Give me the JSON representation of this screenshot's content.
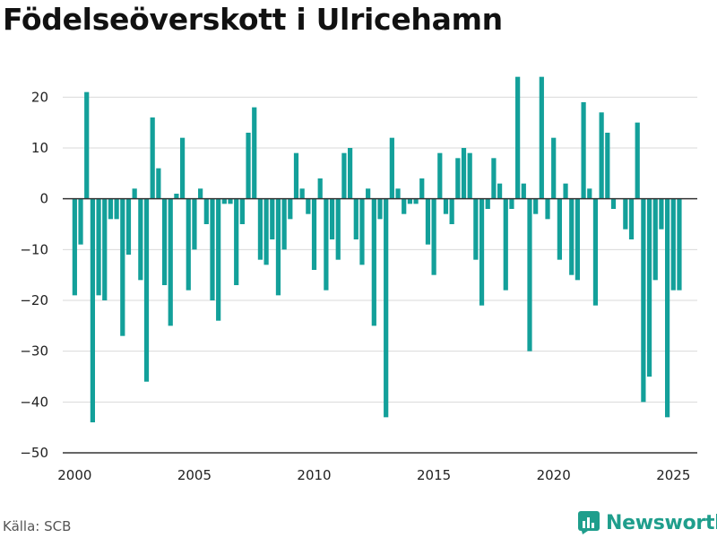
{
  "title": "Födelseöverskott i Ulricehamn",
  "source": "Källa: SCB",
  "brand": {
    "name": "Newsworthy",
    "color": "#1f9e8c"
  },
  "chart_data": {
    "type": "bar",
    "title": "Födelseöverskott i Ulricehamn",
    "xlabel": "",
    "ylabel": "",
    "ylim": [
      -50,
      25
    ],
    "xlim": [
      1999.5,
      2026.0
    ],
    "yticks": [
      20,
      10,
      0,
      -10,
      -20,
      -30,
      -40,
      -50
    ],
    "ytick_labels": [
      "20",
      "10",
      "0",
      "−10",
      "−20",
      "−30",
      "−40",
      "−50"
    ],
    "xticks": [
      2000,
      2005,
      2010,
      2015,
      2020,
      2025
    ],
    "xtick_labels": [
      "2000",
      "2005",
      "2010",
      "2015",
      "2020",
      "2025"
    ],
    "grid": true,
    "bar_color": "#13a09a",
    "x_step": 0.25,
    "x_start": 2000.0,
    "values": [
      -19,
      -9,
      21,
      -44,
      -19,
      -20,
      -4,
      -4,
      -27,
      -11,
      2,
      -16,
      -36,
      16,
      6,
      -17,
      -25,
      1,
      12,
      -18,
      -10,
      2,
      -5,
      -20,
      -24,
      -1,
      -1,
      -17,
      -5,
      13,
      18,
      -12,
      -13,
      -8,
      -19,
      -10,
      -4,
      9,
      2,
      -3,
      -14,
      4,
      -18,
      -8,
      -12,
      9,
      10,
      -8,
      -13,
      2,
      -25,
      -4,
      -43,
      12,
      2,
      -3,
      -1,
      -1,
      4,
      -9,
      -15,
      9,
      -3,
      -5,
      8,
      10,
      9,
      -12,
      -21,
      -2,
      8,
      3,
      -18,
      -2,
      24,
      3,
      -30,
      -3,
      24,
      -4,
      12,
      -12,
      3,
      -15,
      -16,
      19,
      2,
      -21,
      17,
      13,
      -2,
      0,
      -6,
      -8,
      15,
      -40,
      -35,
      -16,
      -6,
      -43,
      -18,
      -18
    ]
  }
}
